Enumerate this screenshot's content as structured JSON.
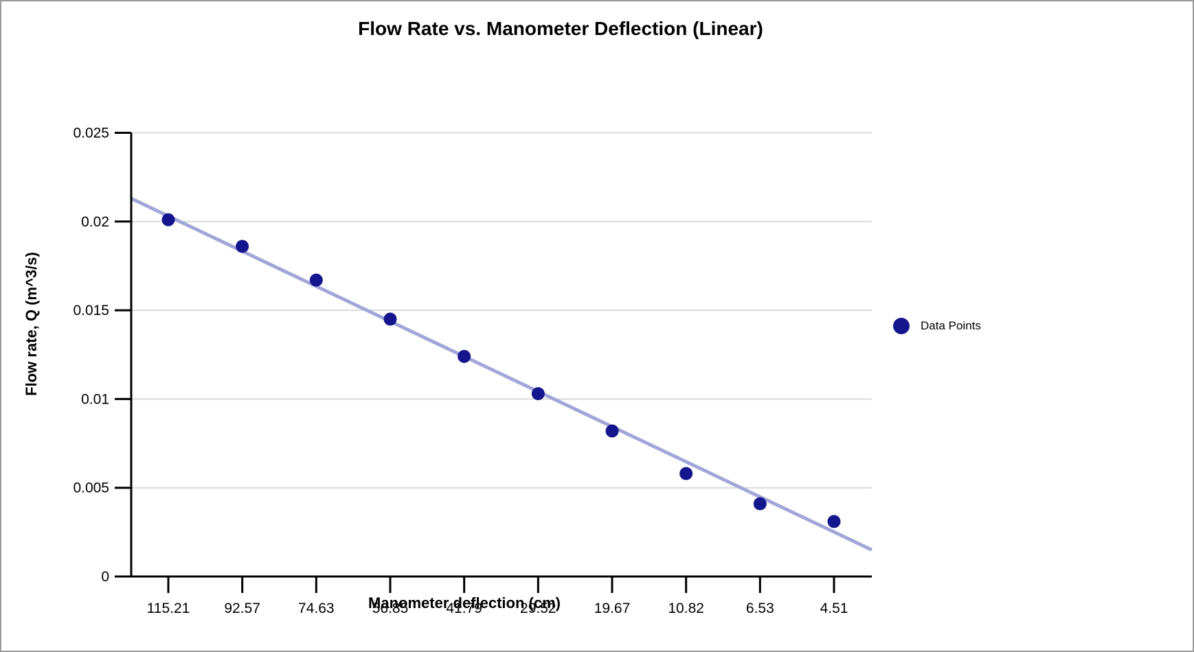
{
  "title": "Flow Rate vs. Manometer Deflection (Linear)",
  "colors": {
    "point": "#15158d",
    "trendline": "#a2a5d8",
    "gridline": "#d9d9d9",
    "axis": "#000000",
    "text": "#000000",
    "frame_border": "#999999"
  },
  "legend": {
    "label": "Data Points",
    "marker": "circle"
  },
  "chart_data": {
    "type": "scatter",
    "title": "Flow Rate vs. Manometer Deflection (Linear)",
    "xlabel": "Manometer deflection (cm)",
    "ylabel": "Flow rate, Q (m^3/s)",
    "categories": [
      "115.21",
      "92.57",
      "74.63",
      "56.85",
      "41.79",
      "29.52",
      "19.67",
      "10.82",
      "6.53",
      "4.51"
    ],
    "series": [
      {
        "name": "Data Points",
        "values": [
          0.0201,
          0.0186,
          0.0167,
          0.0145,
          0.0124,
          0.0103,
          0.0082,
          0.0058,
          0.0041,
          0.0031
        ]
      }
    ],
    "trendline": {
      "type": "linear",
      "start_value": 0.0213,
      "end_value": 0.0015
    },
    "y_ticks": [
      {
        "value": 0,
        "label": "0"
      },
      {
        "value": 0.005,
        "label": "0.005"
      },
      {
        "value": 0.01,
        "label": "0.01"
      },
      {
        "value": 0.015,
        "label": "0.015"
      },
      {
        "value": 0.02,
        "label": "0.02"
      },
      {
        "value": 0.025,
        "label": "0.025"
      }
    ],
    "ylim": [
      0,
      0.025
    ],
    "grid": true,
    "legend_position": "right"
  }
}
